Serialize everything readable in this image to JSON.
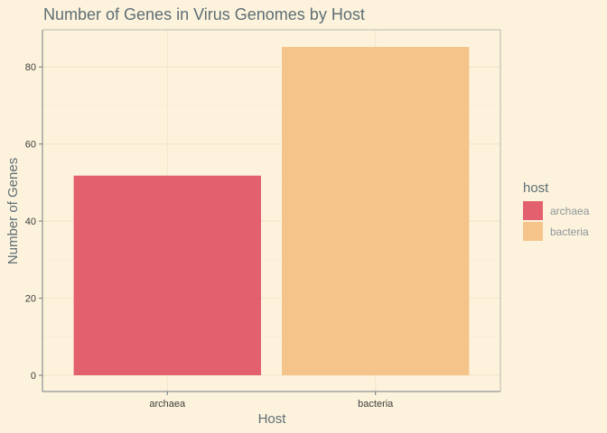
{
  "chart_data": {
    "type": "bar",
    "title": "Number of Genes in Virus Genomes by Host",
    "xlabel": "Host",
    "ylabel": "Number of Genes",
    "categories": [
      "archaea",
      "bacteria"
    ],
    "values": [
      51.8,
      85.2
    ],
    "ylim": [
      0,
      85.2
    ],
    "yticks": [
      0,
      20,
      40,
      60,
      80
    ],
    "ytick_labels": [
      "0",
      "20",
      "40",
      "60",
      "80"
    ],
    "grid": true,
    "legend": {
      "title": "host",
      "position": "right",
      "entries": [
        {
          "label": "archaea",
          "color": "#e3606f"
        },
        {
          "label": "bacteria",
          "color": "#f5c48a"
        }
      ]
    },
    "colors": {
      "background": "#fdf3dd",
      "grid": "#f3e7cc",
      "axis": "#6f7b7f",
      "text": "#5e6e74",
      "tick_text": "#3d3d3d"
    }
  }
}
